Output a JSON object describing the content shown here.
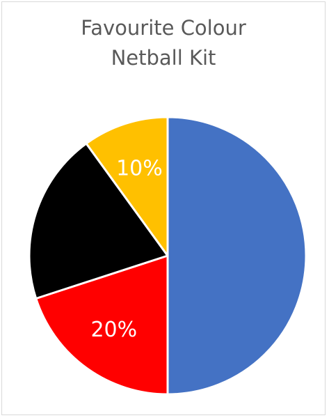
{
  "chart_data": {
    "type": "pie",
    "title": "Favourite Colour",
    "subtitle": "Netball Kit",
    "slices": [
      {
        "label": "",
        "value": 50,
        "color": "#4472C4",
        "data_label": ""
      },
      {
        "label": "",
        "value": 20,
        "color": "#FF0000",
        "data_label": "20%"
      },
      {
        "label": "",
        "value": 20,
        "color": "#000000",
        "data_label": ""
      },
      {
        "label": "",
        "value": 10,
        "color": "#FFC000",
        "data_label": "10%"
      }
    ],
    "start_angle_deg": 0,
    "direction": "clockwise",
    "legend": "none"
  }
}
